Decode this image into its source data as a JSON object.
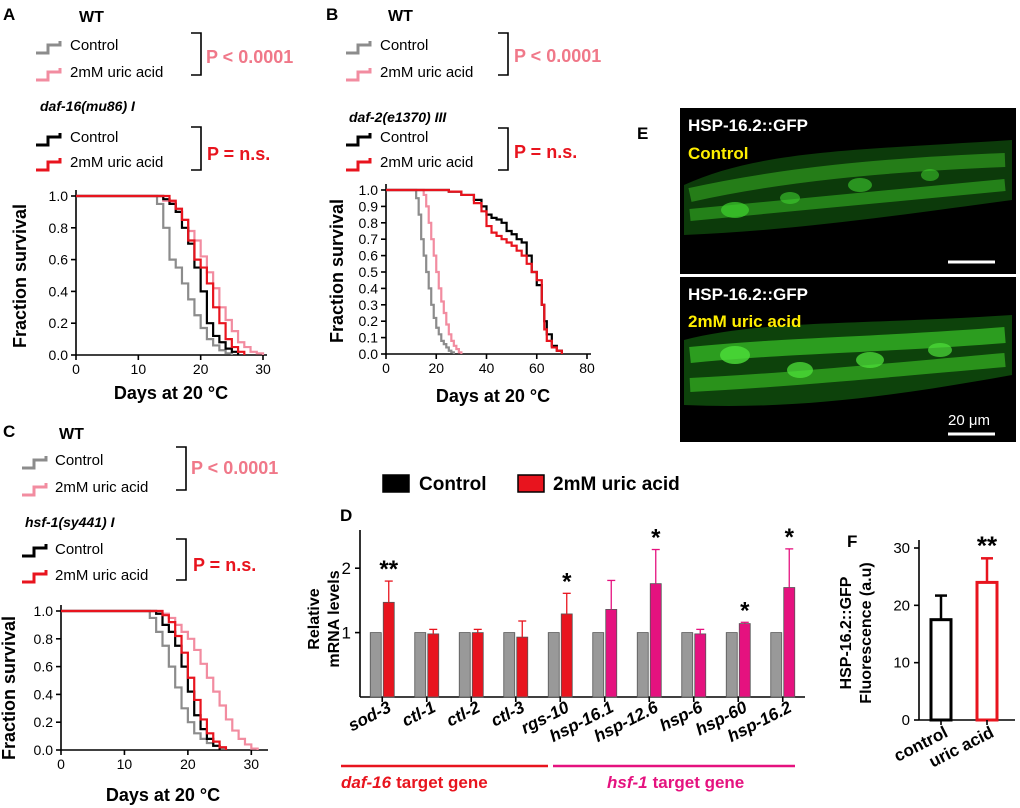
{
  "colors": {
    "control": "#8c8c8c",
    "uric": "#f28ca0",
    "mut_control": "#000000",
    "mut_uric": "#e8141e",
    "pink": "#f07889",
    "red": "#e8141e",
    "magenta": "#e5127f",
    "micro_label": "#ffee00",
    "gfp": "#3fd12e"
  },
  "panel_labels": {
    "a": "A",
    "b": "B",
    "c": "C",
    "d": "D",
    "e": "E",
    "f": "F"
  },
  "legend": {
    "wt": "WT",
    "control": "Control",
    "uric": "2mM uric acid",
    "p_wt": "P < 0.0001",
    "p_ns": "P = n.s."
  },
  "genotypes": {
    "a": "daf-16(mu86) I",
    "b": "daf-2(e1370) III",
    "c": "hsf-1(sy441) I"
  },
  "axes": {
    "survival_y": "Fraction survival",
    "days_x": "Days at 20 °C",
    "mrna_y1": "Relative",
    "mrna_y2": "mRNA levels",
    "fluo_y1": "HSP-16.2::GFP",
    "fluo_y2": "Fluorescence (a.u)"
  },
  "bar_legend": {
    "control": "Control",
    "uric": "2mM uric acid"
  },
  "target_groups": {
    "daf16": "target gene",
    "daf16_gene": "daf-16",
    "hsf1": "target gene",
    "hsf1_gene": "hsf-1"
  },
  "micrographs": {
    "title": "HSP-16.2::GFP",
    "top_condition": "Control",
    "bottom_condition": "2mM uric acid",
    "scale": "20 μm"
  },
  "chart_data": [
    {
      "id": "A",
      "type": "line",
      "title": "",
      "xlabel": "Days at 20 °C",
      "ylabel": "Fraction survival",
      "xlim": [
        0,
        30
      ],
      "ylim": [
        0,
        1
      ],
      "xticks": [
        0,
        10,
        20,
        30
      ],
      "yticks": [
        0,
        0.2,
        0.4,
        0.6,
        0.8,
        1.0
      ],
      "series": [
        {
          "name": "WT Control",
          "color": "control",
          "x": [
            0,
            13,
            14,
            15,
            16,
            17,
            18,
            19,
            20,
            21,
            22,
            23,
            24,
            25
          ],
          "y": [
            1,
            0.95,
            0.8,
            0.6,
            0.55,
            0.45,
            0.35,
            0.25,
            0.17,
            0.1,
            0.06,
            0.03,
            0.01,
            0
          ]
        },
        {
          "name": "WT 2mM uric acid",
          "color": "uric",
          "x": [
            0,
            14,
            15,
            16,
            17,
            18,
            19,
            20,
            21,
            22,
            23,
            24,
            25,
            26,
            27,
            28,
            29,
            30
          ],
          "y": [
            1,
            0.97,
            0.96,
            0.9,
            0.85,
            0.78,
            0.72,
            0.62,
            0.52,
            0.42,
            0.3,
            0.22,
            0.15,
            0.08,
            0.05,
            0.02,
            0.01,
            0
          ]
        },
        {
          "name": "daf-16 Control",
          "color": "mut_control",
          "x": [
            0,
            14,
            15,
            16,
            17,
            18,
            19,
            20,
            21,
            22,
            23,
            24,
            25,
            26
          ],
          "y": [
            1,
            0.98,
            0.95,
            0.9,
            0.8,
            0.7,
            0.55,
            0.4,
            0.2,
            0.12,
            0.08,
            0.04,
            0.02,
            0
          ]
        },
        {
          "name": "daf-16 2mM uric acid",
          "color": "mut_uric",
          "x": [
            0,
            15,
            16,
            17,
            18,
            19,
            20,
            21,
            22,
            23,
            24,
            25,
            26,
            27
          ],
          "y": [
            1,
            0.97,
            0.92,
            0.85,
            0.72,
            0.6,
            0.55,
            0.45,
            0.3,
            0.2,
            0.1,
            0.05,
            0.02,
            0
          ]
        }
      ]
    },
    {
      "id": "B",
      "type": "line",
      "title": "",
      "xlabel": "Days at 20 °C",
      "ylabel": "Fraction survival",
      "xlim": [
        0,
        80
      ],
      "ylim": [
        0,
        1
      ],
      "xticks": [
        0,
        20,
        40,
        60,
        80
      ],
      "yticks": [
        0,
        0.1,
        0.2,
        0.3,
        0.4,
        0.5,
        0.6,
        0.7,
        0.8,
        0.9,
        1.0
      ],
      "series": [
        {
          "name": "WT Control",
          "color": "control",
          "x": [
            0,
            12,
            13,
            14,
            15,
            16,
            17,
            18,
            19,
            20,
            21,
            22,
            23,
            24,
            25,
            26,
            27
          ],
          "y": [
            1,
            0.95,
            0.85,
            0.7,
            0.6,
            0.5,
            0.4,
            0.3,
            0.22,
            0.16,
            0.12,
            0.08,
            0.06,
            0.04,
            0.02,
            0.01,
            0
          ]
        },
        {
          "name": "WT 2mM uric acid",
          "color": "uric",
          "x": [
            0,
            15,
            16,
            17,
            18,
            19,
            20,
            21,
            22,
            23,
            24,
            25,
            26,
            27,
            28,
            29,
            30
          ],
          "y": [
            1,
            0.97,
            0.9,
            0.8,
            0.7,
            0.6,
            0.5,
            0.4,
            0.32,
            0.25,
            0.18,
            0.12,
            0.08,
            0.05,
            0.03,
            0.01,
            0
          ]
        },
        {
          "name": "daf-2 Control",
          "color": "mut_control",
          "x": [
            0,
            25,
            30,
            35,
            38,
            40,
            42,
            44,
            46,
            48,
            50,
            52,
            54,
            56,
            58,
            60,
            62,
            63,
            64,
            66,
            68,
            70
          ],
          "y": [
            1,
            0.99,
            0.97,
            0.94,
            0.9,
            0.85,
            0.83,
            0.82,
            0.8,
            0.75,
            0.73,
            0.7,
            0.68,
            0.6,
            0.5,
            0.42,
            0.3,
            0.2,
            0.12,
            0.05,
            0.02,
            0
          ]
        },
        {
          "name": "daf-2 2mM uric acid",
          "color": "mut_uric",
          "x": [
            0,
            25,
            30,
            35,
            38,
            40,
            42,
            44,
            46,
            48,
            50,
            52,
            54,
            56,
            58,
            60,
            62,
            63,
            64,
            66,
            68,
            70
          ],
          "y": [
            1,
            0.99,
            0.97,
            0.92,
            0.87,
            0.78,
            0.74,
            0.72,
            0.7,
            0.68,
            0.66,
            0.63,
            0.6,
            0.55,
            0.5,
            0.45,
            0.3,
            0.15,
            0.08,
            0.04,
            0.02,
            0
          ]
        }
      ]
    },
    {
      "id": "C",
      "type": "line",
      "title": "",
      "xlabel": "Days at 20 °C",
      "ylabel": "Fraction survival",
      "xlim": [
        0,
        32
      ],
      "ylim": [
        0,
        1
      ],
      "xticks": [
        0,
        10,
        20,
        30
      ],
      "yticks": [
        0,
        0.2,
        0.4,
        0.6,
        0.8,
        1.0
      ],
      "series": [
        {
          "name": "WT Control",
          "color": "control",
          "x": [
            0,
            14,
            15,
            16,
            17,
            18,
            19,
            20,
            21,
            22,
            23,
            24,
            25,
            26
          ],
          "y": [
            1,
            0.95,
            0.85,
            0.75,
            0.6,
            0.45,
            0.3,
            0.2,
            0.12,
            0.08,
            0.05,
            0.03,
            0.01,
            0
          ]
        },
        {
          "name": "WT 2mM uric acid",
          "color": "uric",
          "x": [
            0,
            16,
            17,
            18,
            19,
            20,
            21,
            22,
            23,
            24,
            25,
            26,
            27,
            28,
            29,
            30,
            31
          ],
          "y": [
            1,
            0.98,
            0.95,
            0.9,
            0.85,
            0.8,
            0.72,
            0.62,
            0.52,
            0.42,
            0.32,
            0.22,
            0.14,
            0.08,
            0.04,
            0.01,
            0
          ]
        },
        {
          "name": "hsf-1 Control",
          "color": "mut_control",
          "x": [
            0,
            15,
            16,
            17,
            18,
            19,
            20,
            21,
            22,
            23,
            24,
            25
          ],
          "y": [
            1,
            0.98,
            0.9,
            0.85,
            0.75,
            0.6,
            0.42,
            0.25,
            0.15,
            0.08,
            0.03,
            0
          ]
        },
        {
          "name": "hsf-1 2mM uric acid",
          "color": "mut_uric",
          "x": [
            0,
            16,
            17,
            18,
            19,
            20,
            21,
            22,
            23,
            24,
            25,
            26
          ],
          "y": [
            1,
            0.97,
            0.92,
            0.82,
            0.7,
            0.52,
            0.36,
            0.22,
            0.12,
            0.06,
            0.02,
            0
          ]
        }
      ]
    },
    {
      "id": "D",
      "type": "bar",
      "title": "",
      "xlabel": "",
      "ylabel": "Relative mRNA levels",
      "ylim": [
        0,
        2.5
      ],
      "yticks": [
        1,
        2
      ],
      "categories": [
        "sod-3",
        "ctl-1",
        "ctl-2",
        "ctl-3",
        "rgs-10",
        "hsp-16.1",
        "hsp-12.6",
        "hsp-6",
        "hsp-60",
        "hsp-16.2"
      ],
      "series": [
        {
          "name": "Control",
          "values": [
            1,
            1,
            1,
            1,
            1,
            1,
            1,
            1,
            1,
            1
          ]
        },
        {
          "name": "2mM uric acid",
          "values": [
            1.47,
            0.98,
            1.0,
            0.93,
            1.29,
            1.36,
            1.76,
            0.98,
            1.14,
            1.7
          ],
          "errors": [
            0.33,
            0.07,
            0.05,
            0.25,
            0.32,
            0.45,
            0.53,
            0.07,
            0.02,
            0.6
          ],
          "significance": [
            "**",
            "",
            "",
            "",
            "*",
            "",
            "*",
            "",
            "*",
            "*"
          ]
        }
      ]
    },
    {
      "id": "F",
      "type": "bar",
      "title": "",
      "xlabel": "",
      "ylabel": "HSP-16.2::GFP Fluorescence (a.u)",
      "ylim": [
        0,
        32
      ],
      "yticks": [
        0,
        10,
        20,
        30
      ],
      "categories": [
        "control",
        "uric acid"
      ],
      "values": [
        17.5,
        24
      ],
      "errors": [
        4.2,
        4.2
      ],
      "significance": [
        "",
        "**"
      ]
    }
  ]
}
